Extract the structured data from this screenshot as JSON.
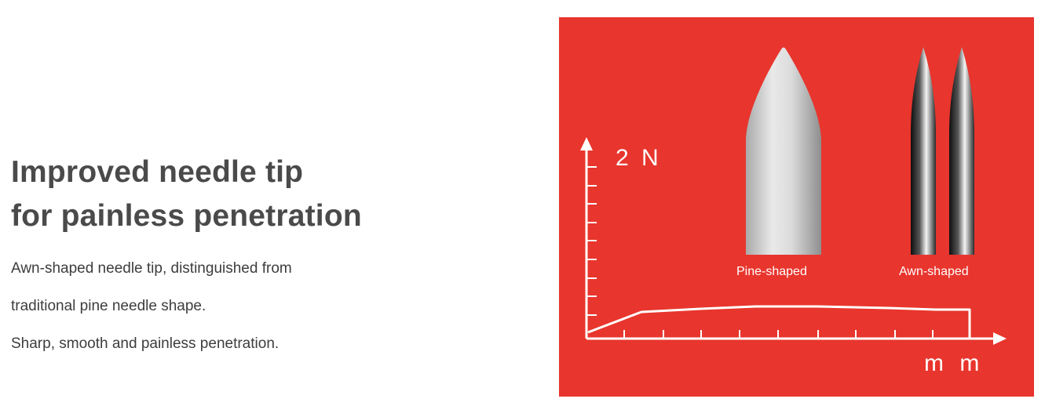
{
  "headline": {
    "line1": "Improved needle tip",
    "line2": "for painless penetration"
  },
  "description": [
    "Awn-shaped needle tip, distinguished from",
    "traditional pine needle shape.",
    "Sharp, smooth and painless penetration."
  ],
  "diagram": {
    "y_axis_label": "2 N",
    "x_axis_label": "m m",
    "needles": [
      {
        "label": "Pine-shaped"
      },
      {
        "label": "Awn-shaped"
      }
    ]
  },
  "colors": {
    "panel_background": "#e8352d",
    "headline_text": "#4a4a4a",
    "body_text": "#3d3d3d",
    "diagram_lines": "#ffffff"
  }
}
